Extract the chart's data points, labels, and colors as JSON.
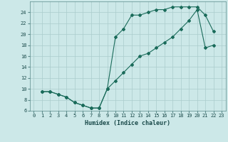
{
  "title": "",
  "xlabel": "Humidex (Indice chaleur)",
  "bg_color": "#cce8e8",
  "grid_color": "#aacccc",
  "line_color": "#1a6b5a",
  "xlim": [
    -0.5,
    23.5
  ],
  "ylim": [
    6,
    26
  ],
  "xticks": [
    0,
    1,
    2,
    3,
    4,
    5,
    6,
    7,
    8,
    9,
    10,
    11,
    12,
    13,
    14,
    15,
    16,
    17,
    18,
    19,
    20,
    21,
    22,
    23
  ],
  "yticks": [
    6,
    8,
    10,
    12,
    14,
    16,
    18,
    20,
    22,
    24
  ],
  "line1_x": [
    1,
    2,
    3,
    4,
    5,
    6,
    7,
    8,
    9,
    10,
    11,
    12,
    13,
    14,
    15,
    16,
    17,
    18,
    19,
    20,
    21,
    22
  ],
  "line1_y": [
    9.5,
    9.5,
    9.0,
    8.5,
    7.5,
    7.0,
    6.5,
    6.5,
    10.0,
    19.5,
    21.0,
    23.5,
    23.5,
    24.0,
    24.5,
    24.5,
    25.0,
    25.0,
    25.0,
    25.0,
    23.5,
    20.5
  ],
  "line2_x": [
    1,
    2,
    3,
    4,
    5,
    6,
    7,
    8,
    9,
    10,
    11,
    12,
    13,
    14,
    15,
    16,
    17,
    18,
    19,
    20,
    21,
    22
  ],
  "line2_y": [
    9.5,
    9.5,
    9.0,
    8.5,
    7.5,
    7.0,
    6.5,
    6.5,
    10.0,
    11.5,
    13.0,
    14.5,
    16.0,
    16.5,
    17.5,
    18.5,
    19.5,
    21.0,
    22.5,
    24.5,
    17.5,
    18.0
  ]
}
